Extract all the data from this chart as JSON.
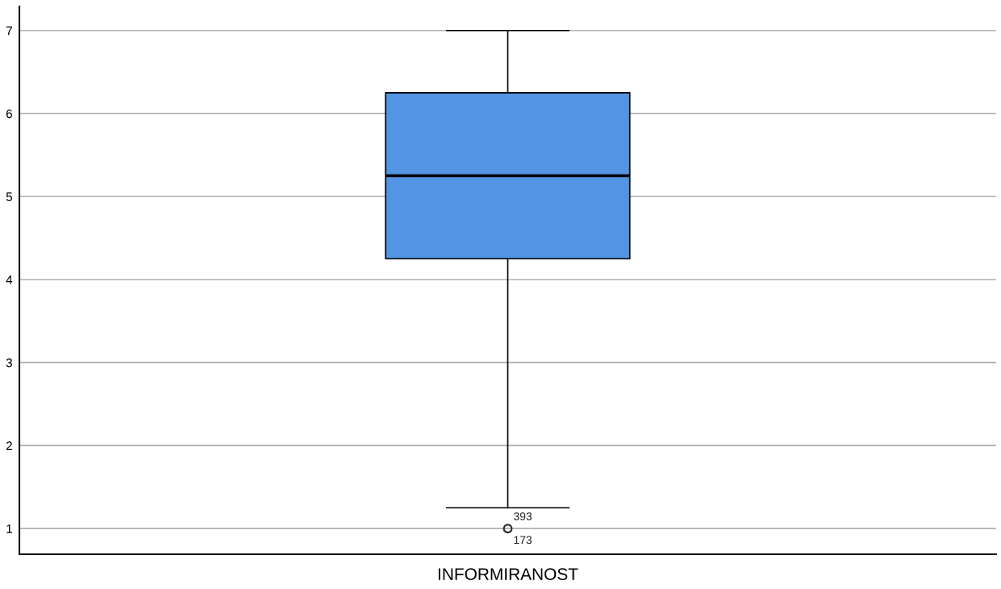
{
  "chart_data": {
    "type": "box",
    "categories": [
      "INFORMIRANOST"
    ],
    "series": [
      {
        "color": "#5495e3",
        "boxes": [
          {
            "low": 1.25,
            "q1": 4.25,
            "median": 5.25,
            "q3": 6.25,
            "high": 7,
            "outliers": [
              1
            ]
          }
        ]
      }
    ],
    "ylim": [
      0.69,
      7.29
    ],
    "yticks": [
      1,
      2,
      3,
      4,
      5,
      6,
      7
    ],
    "grid": "y",
    "annotations": [
      "393",
      "173"
    ]
  }
}
